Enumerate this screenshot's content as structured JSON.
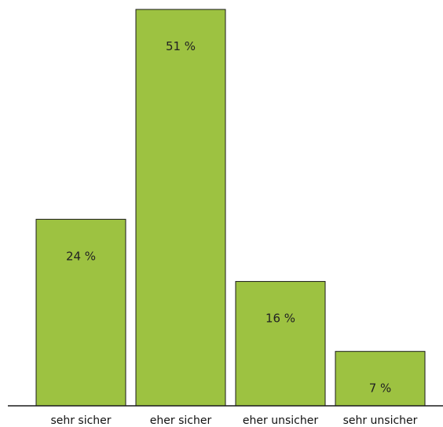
{
  "chart_data": {
    "type": "bar",
    "categories": [
      "sehr sicher",
      "eher sicher",
      "eher unsicher",
      "sehr unsicher"
    ],
    "values": [
      24,
      51,
      16,
      7
    ],
    "data_labels": [
      "24 %",
      "51 %",
      "16 %",
      "7 %"
    ],
    "title": "",
    "xlabel": "",
    "ylabel": "",
    "ylim": [
      0,
      51
    ],
    "grid": false,
    "legend": "none",
    "colors": {
      "bar_fill": "#9dc241",
      "bar_stroke": "#1a1a1a",
      "axis": "#1a1a1a",
      "label_text": "#222222"
    }
  }
}
